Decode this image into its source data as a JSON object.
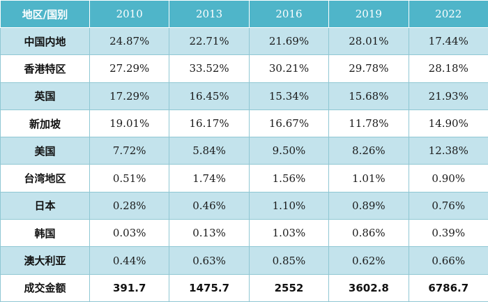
{
  "chart_data": {
    "type": "table",
    "header": [
      "地区/国别",
      "2010",
      "2013",
      "2016",
      "2019",
      "2022"
    ],
    "rows": [
      {
        "region": "中国内地",
        "values": [
          "24.87%",
          "22.71%",
          "21.69%",
          "28.01%",
          "17.44%"
        ]
      },
      {
        "region": "香港特区",
        "values": [
          "27.29%",
          "33.52%",
          "30.21%",
          "29.78%",
          "28.18%"
        ]
      },
      {
        "region": "英国",
        "values": [
          "17.29%",
          "16.45%",
          "15.34%",
          "15.68%",
          "21.93%"
        ]
      },
      {
        "region": "新加坡",
        "values": [
          "19.01%",
          "16.17%",
          "16.67%",
          "11.78%",
          "14.90%"
        ]
      },
      {
        "region": "美国",
        "values": [
          "7.72%",
          "5.84%",
          "9.50%",
          "8.26%",
          "12.38%"
        ]
      },
      {
        "region": "台湾地区",
        "values": [
          "0.51%",
          "1.74%",
          "1.56%",
          "1.01%",
          "0.90%"
        ]
      },
      {
        "region": "日本",
        "values": [
          "0.28%",
          "0.46%",
          "1.10%",
          "0.89%",
          "0.76%"
        ]
      },
      {
        "region": "韩国",
        "values": [
          "0.03%",
          "0.13%",
          "1.03%",
          "0.86%",
          "0.39%"
        ]
      },
      {
        "region": "澳大利亚",
        "values": [
          "0.44%",
          "0.63%",
          "0.85%",
          "0.62%",
          "0.66%"
        ]
      },
      {
        "region": "成交金额",
        "values": [
          "391.7",
          "1475.7",
          "2552",
          "3602.8",
          "6786.7"
        ]
      }
    ]
  },
  "colors": {
    "header_bg": "#4fb5c9",
    "band_bg": "#c3e3ec",
    "plain_bg": "#ffffff",
    "border": "#8fc7d3"
  }
}
